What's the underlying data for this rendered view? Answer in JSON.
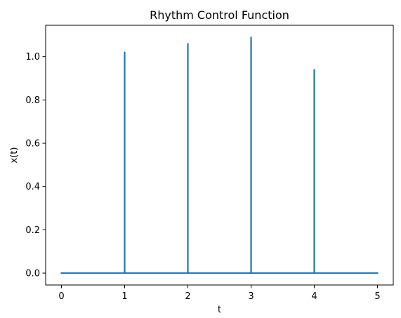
{
  "chart_data": {
    "type": "line",
    "title": "Rhythm Control Function",
    "xlabel": "t",
    "ylabel": "x(t)",
    "xlim": [
      -0.25,
      5.25
    ],
    "ylim": [
      -0.055,
      1.145
    ],
    "x_ticks": [
      0,
      1,
      2,
      3,
      4,
      5
    ],
    "x_tick_labels": [
      "0",
      "1",
      "2",
      "3",
      "4",
      "5"
    ],
    "y_ticks": [
      0.0,
      0.2,
      0.4,
      0.6,
      0.8,
      1.0
    ],
    "y_tick_labels": [
      "0.0",
      "0.2",
      "0.4",
      "0.6",
      "0.8",
      "1.0"
    ],
    "grid": false,
    "legend": "none",
    "series": [
      {
        "color": "#1f77b4",
        "baseline": 0.0,
        "x_range": [
          0,
          5
        ],
        "spikes": [
          {
            "x": 1,
            "y": 1.02
          },
          {
            "x": 2,
            "y": 1.06
          },
          {
            "x": 3,
            "y": 1.09
          },
          {
            "x": 4,
            "y": 0.94
          }
        ]
      }
    ]
  }
}
